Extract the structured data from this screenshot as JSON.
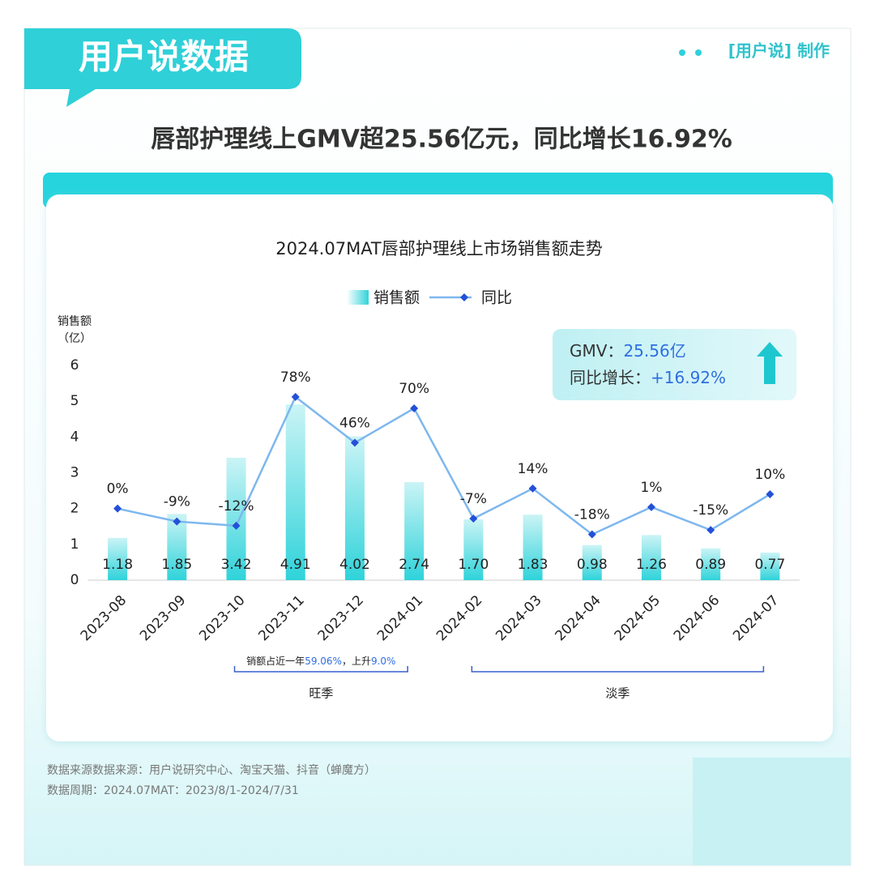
{
  "header": {
    "brand": "用户说数据",
    "credit": "[用户说] 制作",
    "headline": "唇部护理线上GMV超25.56亿元，同比增长16.92%"
  },
  "chart_data": {
    "type": "combo",
    "title": "2024.07MAT唇部护理线上市场销售额走势",
    "ylabel": [
      "销售额",
      "（亿）"
    ],
    "categories": [
      "2023-08",
      "2023-09",
      "2023-10",
      "2023-11",
      "2023-12",
      "2024-01",
      "2024-02",
      "2024-03",
      "2024-04",
      "2024-05",
      "2024-06",
      "2024-07"
    ],
    "series": [
      {
        "name": "销售额",
        "type": "bar",
        "color": "#2fd3da",
        "values": [
          1.18,
          1.85,
          3.42,
          4.91,
          4.02,
          2.74,
          1.7,
          1.83,
          0.98,
          1.26,
          0.89,
          0.77
        ],
        "value_labels": [
          "1.18",
          "1.85",
          "3.42",
          "4.91",
          "4.02",
          "2.74",
          "1.70",
          "1.83",
          "0.98",
          "1.26",
          "0.89",
          "0.77"
        ]
      },
      {
        "name": "同比",
        "type": "line",
        "axis": "y2",
        "color": "#7db7ee",
        "marker_color": "#2350d8",
        "values": [
          0,
          -9,
          -12,
          78,
          46,
          70,
          -7,
          14,
          -18,
          1,
          -15,
          10
        ],
        "value_labels": [
          "0%",
          "-9%",
          "-12%",
          "78%",
          "46%",
          "70%",
          "-7%",
          "14%",
          "-18%",
          "1%",
          "-15%",
          "10%"
        ]
      }
    ],
    "ylim": [
      0,
      6
    ],
    "yticks": [
      0,
      1,
      2,
      3,
      4,
      5,
      6
    ],
    "y2lim": [
      -50,
      100
    ],
    "legend": "top",
    "callout": {
      "gmv_label": "GMV：",
      "gmv_value": "25.56亿",
      "growth_label": "同比增长：",
      "growth_value": "+16.92%"
    },
    "annotations": {
      "peak_note": [
        "销额占近一年",
        "59.06%",
        "，上升",
        "9.0%"
      ],
      "peak": "旺季",
      "off": "淡季"
    }
  },
  "footer": {
    "source": "数据来源数据来源：用户说研究中心、淘宝天猫、抖音（蝉魔方）",
    "period": "数据周期：2024.07MAT：2023/8/1-2024/7/31"
  }
}
